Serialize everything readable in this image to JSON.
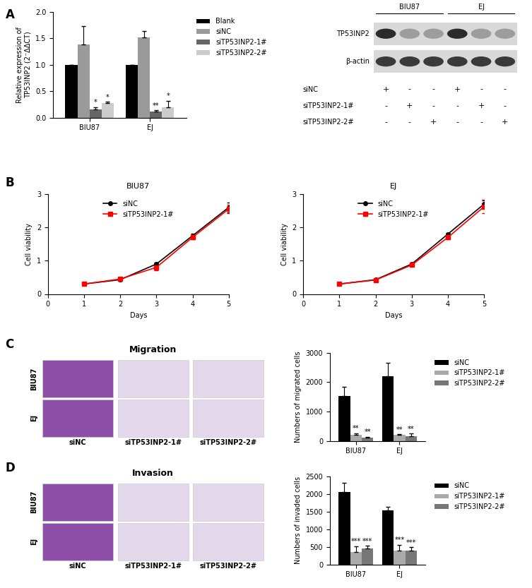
{
  "panel_labels": [
    "A",
    "B",
    "C",
    "D"
  ],
  "chart_data": [
    {
      "type": "bar",
      "categories": [
        "BIU87",
        "EJ"
      ],
      "ylabel": "Relative expression of\nTP53INP2 (2⁻ΔΔCT)",
      "ylim": [
        0,
        2
      ],
      "yticks": [
        {
          "value": 0,
          "label": "0.0"
        },
        {
          "value": 0.5,
          "label": "0.5"
        },
        {
          "value": 1,
          "label": "1.0"
        },
        {
          "value": 1.5,
          "label": "1.5"
        },
        {
          "value": 2,
          "label": "2.0"
        }
      ],
      "legend": "right",
      "series": [
        {
          "name": "Blank",
          "color": "#000000",
          "values": [
            1.0,
            1.0
          ],
          "errors": [
            0,
            0
          ],
          "significance": [
            null,
            null
          ]
        },
        {
          "name": "siNC",
          "color": "#9a9a9a",
          "values": [
            1.38,
            1.52
          ],
          "errors": [
            0.35,
            0.12
          ],
          "significance": [
            null,
            null
          ]
        },
        {
          "name": "siTP53INP2-1#",
          "color": "#666666",
          "values": [
            0.15,
            0.12
          ],
          "errors": [
            0.05,
            0.02
          ],
          "significance": [
            "*",
            "**"
          ]
        },
        {
          "name": "siTP53INP2-2#",
          "color": "#cccccc",
          "values": [
            0.28,
            0.2
          ],
          "errors": [
            0.02,
            0.12
          ],
          "significance": [
            "*",
            "*"
          ]
        }
      ]
    },
    {
      "type": "line",
      "title": "BIU87",
      "x": [
        1,
        2,
        3,
        4,
        5
      ],
      "xlabel": "Days",
      "ylabel": "Cell viability",
      "xlim": [
        0,
        5
      ],
      "xticks": [
        0,
        1,
        2,
        3,
        4,
        5
      ],
      "ylim": [
        0,
        3
      ],
      "yticks": [
        0,
        1,
        2,
        3
      ],
      "legend": "upper center",
      "series": [
        {
          "name": "siNC",
          "color": "#000000",
          "marker": "circle",
          "values": [
            0.3,
            0.43,
            0.9,
            1.75,
            2.6
          ],
          "errors": [
            0.03,
            0.03,
            0.05,
            0.07,
            0.15
          ]
        },
        {
          "name": "siTP53INP2-1#",
          "color": "#ff0000",
          "marker": "square",
          "values": [
            0.3,
            0.45,
            0.8,
            1.7,
            2.55
          ],
          "errors": [
            0.03,
            0.03,
            0.1,
            0.05,
            0.12
          ]
        }
      ]
    },
    {
      "type": "line",
      "title": "EJ",
      "x": [
        1,
        2,
        3,
        4,
        5
      ],
      "xlabel": "Days",
      "ylabel": "Cell viability",
      "xlim": [
        0,
        5
      ],
      "xticks": [
        0,
        1,
        2,
        3,
        4,
        5
      ],
      "ylim": [
        0,
        3
      ],
      "yticks": [
        0,
        1,
        2,
        3
      ],
      "legend": "upper center",
      "series": [
        {
          "name": "siNC",
          "color": "#000000",
          "marker": "circle",
          "values": [
            0.3,
            0.43,
            0.9,
            1.8,
            2.7
          ],
          "errors": [
            0.03,
            0.03,
            0.04,
            0.04,
            0.1
          ]
        },
        {
          "name": "siTP53INP2-1#",
          "color": "#ff0000",
          "marker": "square",
          "values": [
            0.3,
            0.42,
            0.87,
            1.7,
            2.62
          ],
          "errors": [
            0.03,
            0.03,
            0.04,
            0.05,
            0.2
          ]
        }
      ]
    },
    {
      "type": "bar",
      "categories": [
        "BIU87",
        "EJ"
      ],
      "ylabel": "Numbers of migrated cells",
      "ylim": [
        0,
        3000
      ],
      "yticks": [
        0,
        1000,
        2000,
        3000
      ],
      "legend": "right",
      "series": [
        {
          "name": "siNC",
          "color": "#000000",
          "values": [
            1520,
            2200
          ],
          "errors": [
            330,
            450
          ],
          "significance": [
            null,
            null
          ]
        },
        {
          "name": "siTP53INP2-1#",
          "color": "#aaaaaa",
          "values": [
            210,
            220
          ],
          "errors": [
            60,
            20
          ],
          "significance": [
            "**",
            "**"
          ]
        },
        {
          "name": "siTP53INP2-2#",
          "color": "#777777",
          "values": [
            120,
            160
          ],
          "errors": [
            30,
            100
          ],
          "significance": [
            "**",
            "**"
          ]
        }
      ]
    },
    {
      "type": "bar",
      "categories": [
        "BIU87",
        "EJ"
      ],
      "ylabel": "Numbers of invaded cells",
      "ylim": [
        0,
        2500
      ],
      "yticks": [
        0,
        500,
        1000,
        1500,
        2000,
        2500
      ],
      "legend": "right",
      "series": [
        {
          "name": "siNC",
          "color": "#000000",
          "values": [
            2050,
            1540
          ],
          "errors": [
            270,
            100
          ],
          "significance": [
            null,
            null
          ]
        },
        {
          "name": "siTP53INP2-1#",
          "color": "#aaaaaa",
          "values": [
            350,
            390
          ],
          "errors": [
            170,
            170
          ],
          "significance": [
            "***",
            "***"
          ]
        },
        {
          "name": "siTP53INP2-2#",
          "color": "#777777",
          "values": [
            450,
            390
          ],
          "errors": [
            80,
            100
          ],
          "significance": [
            "***",
            "***"
          ]
        }
      ]
    }
  ],
  "western_blot": {
    "groups": [
      {
        "name": "BIU87",
        "lanes": 3
      },
      {
        "name": "EJ",
        "lanes": 3
      }
    ],
    "proteins": [
      "TP53INP2",
      "β-actin"
    ],
    "conditions": [
      {
        "name": "siNC",
        "marks": [
          "+",
          "-",
          "-",
          "+",
          "-",
          "-"
        ]
      },
      {
        "name": "siTP53INP2-1#",
        "marks": [
          "-",
          "+",
          "-",
          "-",
          "+",
          "-"
        ]
      },
      {
        "name": "siTP53INP2-2#",
        "marks": [
          "-",
          "-",
          "+",
          "-",
          "-",
          "+"
        ]
      }
    ]
  },
  "micrographs": [
    {
      "title": "Migration",
      "rows": [
        "BIU87",
        "EJ"
      ],
      "columns": [
        "siNC",
        "siTP53INP2-1#",
        "siTP53INP2-2#"
      ]
    },
    {
      "title": "Invasion",
      "rows": [
        "BIU87",
        "EJ"
      ],
      "columns": [
        "siNC",
        "siTP53INP2-1#",
        "siTP53INP2-2#"
      ]
    }
  ]
}
